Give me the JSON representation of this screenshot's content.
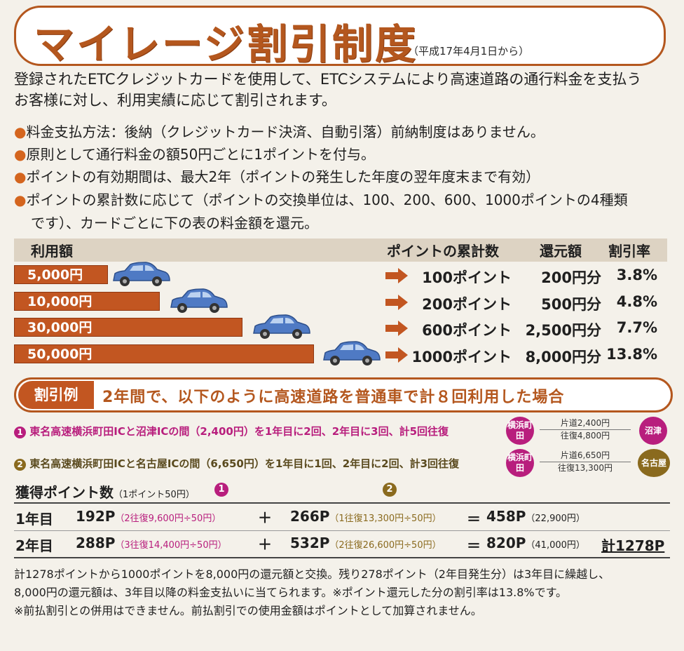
{
  "title": "マイレージ割引制度",
  "title_sub": "（平成17年4月1日から）",
  "intro": [
    "登録されたETCクレジットカードを使用して、ETCシステムにより高速道路の通行料金を支払う",
    "お客様に対し、利用実績に応じて割引されます。"
  ],
  "bullets": [
    "料金支払方法：後納（クレジットカード決済、自動引落）前納制度はありません。",
    "原則として通行料金の額50円ごとに1ポイントを付与。",
    "ポイントの有効期間は、最大2年（ポイントの発生した年度の翌年度末まで有効）",
    "ポイントの累計数に応じて（ポイントの交換単位は、100、200、600、1000ポイントの4種類",
    "です）、カードごとに下の表の料金額を還元。"
  ],
  "table": {
    "headers": [
      "利用額",
      "ポイントの累計数",
      "還元額",
      "割引率"
    ],
    "rows": [
      {
        "amount": "5,000円",
        "points": "100ポイント",
        "refund": "200円分",
        "rate": "3.8%"
      },
      {
        "amount": "10,000円",
        "points": "200ポイント",
        "refund": "500円分",
        "rate": "4.8%"
      },
      {
        "amount": "30,000円",
        "points": "600ポイント",
        "refund": "2,500円分",
        "rate": "7.7%"
      },
      {
        "amount": "50,000円",
        "points": "1000ポイント",
        "refund": "8,000円分",
        "rate": "13.8%"
      }
    ]
  },
  "example": {
    "tag": "割引例",
    "text": "2年間で、以下のように高速道路を普通車で計８回利用した場合",
    "route1": {
      "num": "1",
      "text": "東名高速横浜町田ICと沼津ICの間（2,400円）を1年目に2回、2年目に3回、計5回往復",
      "from": "横浜町田",
      "to": "沼津",
      "oneway": "片道2,400円",
      "round": "往復4,800円"
    },
    "route2": {
      "num": "2",
      "text": "東名高速横浜町田ICと名古屋ICの間（6,650円）を1年目に1回、2年目に2回、計3回往復",
      "from": "横浜町田",
      "to": "名古屋",
      "oneway": "片道6,650円",
      "round": "往復13,300円"
    }
  },
  "points": {
    "heading": "獲得ポイント数",
    "heading_note": "（1ポイント50円）",
    "col1": "1",
    "col2": "2",
    "rows": [
      {
        "year": "1年目",
        "p1": "192P",
        "p1_note": "（2往復9,600円÷50円）",
        "plus": "＋",
        "p2": "266P",
        "p2_note": "（1往復13,300円÷50円）",
        "eq": "＝",
        "total": "458P",
        "total_note": "（22,900円）",
        "grand": ""
      },
      {
        "year": "2年目",
        "p1": "288P",
        "p1_note": "（3往復14,400円÷50円）",
        "plus": "＋",
        "p2": "532P",
        "p2_note": "（2往復26,600円÷50円）",
        "eq": "＝",
        "total": "820P",
        "total_note": "（41,000円）",
        "grand": "計1278P"
      }
    ]
  },
  "footer": [
    "計1278ポイントから1000ポイントを8,000円の還元額と交換。残り278ポイント（2年目発生分）は3年目に繰越し、",
    "8,000円の還元額は、3年目以降の料金支払いに当てられます。※ポイント還元した分の割引率は13.8%です。",
    "※前払割引との併用はできません。前払割引での使用金額はポイントとして加算されません。"
  ],
  "colors": {
    "accent": "#b4571e",
    "bar": "#c25621",
    "magenta": "#b81e7d",
    "olive": "#8a6a1e",
    "car": "#4f7ac4"
  }
}
